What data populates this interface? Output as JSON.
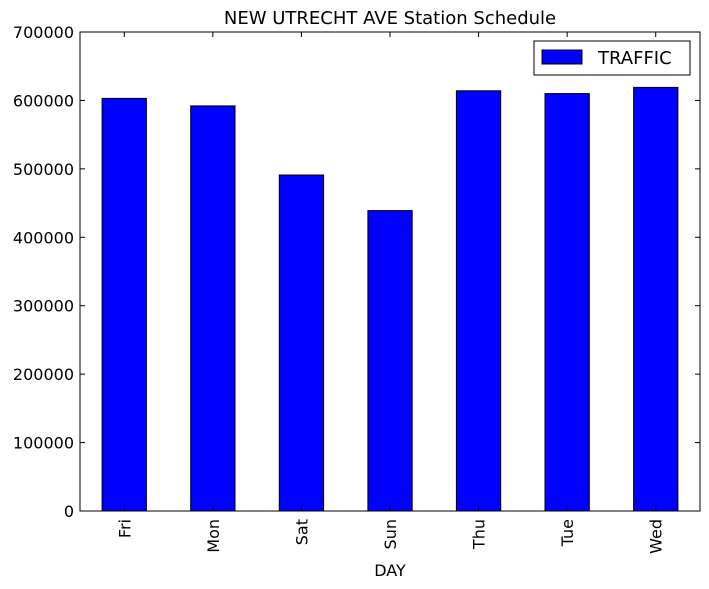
{
  "chart_data": {
    "type": "bar",
    "title": "NEW UTRECHT AVE Station Schedule",
    "xlabel": "DAY",
    "ylabel": "",
    "categories": [
      "Fri",
      "Mon",
      "Sat",
      "Sun",
      "Thu",
      "Tue",
      "Wed"
    ],
    "series": [
      {
        "name": "TRAFFIC",
        "color": "#0000ff",
        "values": [
          603000,
          592000,
          491000,
          439000,
          614000,
          610000,
          619000
        ]
      }
    ],
    "ylim": [
      0,
      700000
    ],
    "yticks": [
      0,
      100000,
      200000,
      300000,
      400000,
      500000,
      600000,
      700000
    ],
    "grid": false,
    "legend_position": "top-right"
  }
}
